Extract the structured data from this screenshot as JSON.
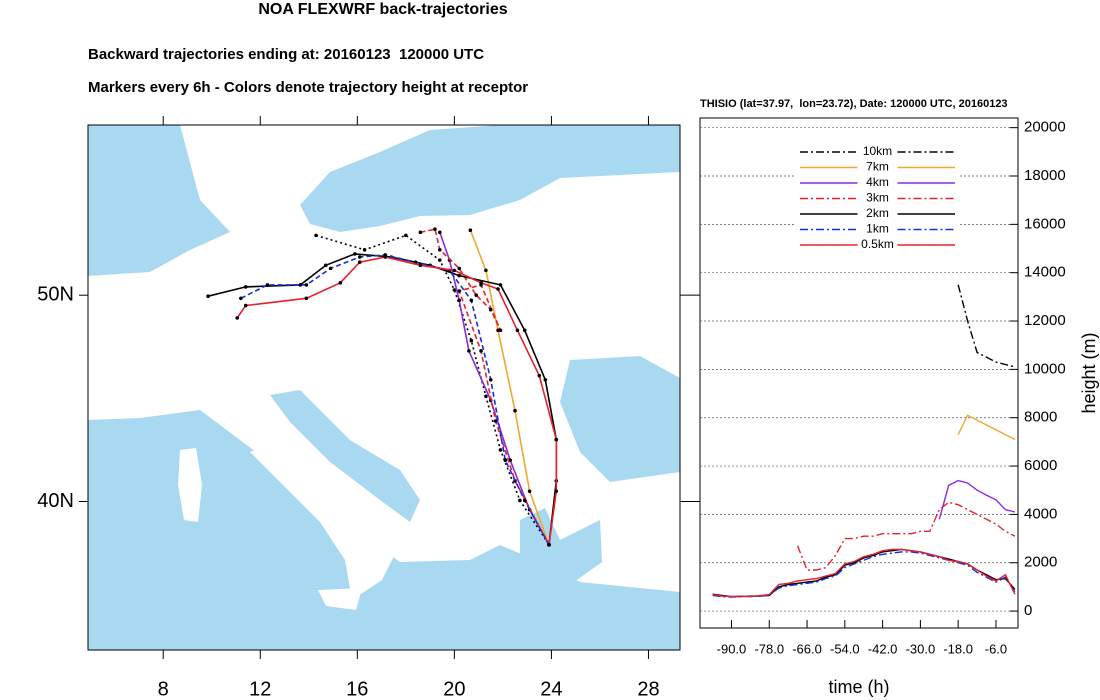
{
  "chart_data": [
    {
      "type": "trajectory-map",
      "title": "NOA FLEXWRF back-trajectories",
      "subtitle": [
        "Backward trajectories ending at: 20160123  120000 UTC",
        "Markers every 6h - Colors denote trajectory height at receptor"
      ],
      "xlim": [
        4.9,
        29.3
      ],
      "ylim": [
        32.8,
        58.25
      ],
      "xticks": [
        8,
        12,
        16,
        20,
        24,
        28
      ],
      "yticks": [
        {
          "value": 40,
          "label": "40N"
        },
        {
          "value": 50,
          "label": "50N"
        }
      ],
      "series": [
        {
          "color": "#000000",
          "style": "dotted",
          "x": [
            14.3,
            16.3,
            18.0,
            19.4,
            20.0,
            20.7,
            21.3,
            21.9,
            22.7,
            23.9
          ],
          "values": [
            52.9,
            52.2,
            52.9,
            51.7,
            50.25,
            47.8,
            45.1,
            42.5,
            40.05,
            37.9
          ]
        },
        {
          "color": "#f0a830",
          "style": "solid",
          "x": [
            20.66,
            21.3,
            21.8,
            22.5,
            23.1,
            23.9
          ],
          "values": [
            53.15,
            51.2,
            48.3,
            44.4,
            40.5,
            37.9
          ]
        },
        {
          "color": "#8a2be2",
          "style": "solid",
          "x": [
            19.4,
            19.8,
            20.2,
            20.6,
            21.5,
            22.3,
            23.1,
            23.9
          ],
          "values": [
            53.05,
            51.7,
            49.75,
            47.3,
            44.9,
            42.0,
            39.6,
            37.9
          ]
        },
        {
          "color": "#e8202a",
          "style": "dashed",
          "x": [
            18.6,
            19.2,
            19.4,
            20.2,
            20.9,
            21.5,
            21.9,
            21.1,
            20.2,
            21.1,
            21.7,
            22.5,
            23.9
          ],
          "values": [
            53.05,
            53.2,
            52.2,
            51.3,
            50.0,
            49.3,
            48.3,
            50.5,
            50.2,
            47.3,
            43.9,
            41.0,
            37.9
          ]
        },
        {
          "color": "#000000",
          "style": "solid",
          "x": [
            9.85,
            11.4,
            13.65,
            14.7,
            15.9,
            17.4,
            19.0,
            20.2,
            21.9,
            22.9,
            23.75,
            24.2,
            24.2,
            23.9
          ],
          "values": [
            49.95,
            50.4,
            50.5,
            51.45,
            52.0,
            51.85,
            51.45,
            50.95,
            50.5,
            48.3,
            45.9,
            43.0,
            41.0,
            37.9
          ]
        },
        {
          "color": "#1030e0",
          "style": "dashed",
          "x": [
            11.2,
            12.3,
            13.9,
            14.9,
            16.1,
            17.15,
            18.4,
            19.8,
            20.7,
            21.5,
            22.1,
            22.9,
            23.9
          ],
          "values": [
            49.85,
            50.5,
            50.5,
            51.3,
            51.85,
            51.95,
            51.6,
            51.2,
            49.75,
            45.9,
            42.0,
            40.05,
            37.9
          ]
        },
        {
          "color": "#e8202a",
          "style": "solid",
          "x": [
            11.05,
            11.4,
            13.9,
            15.3,
            16.1,
            17.15,
            18.6,
            20.0,
            21.1,
            21.8,
            22.6,
            23.5,
            24.2,
            24.2,
            23.9
          ],
          "values": [
            48.9,
            49.5,
            49.85,
            50.6,
            51.6,
            51.85,
            51.45,
            51.2,
            50.6,
            50.3,
            48.3,
            46.1,
            43.0,
            40.5,
            37.9
          ]
        }
      ]
    },
    {
      "type": "line",
      "title": "THISIO (lat=37.97,  lon=23.72), Date: 120000 UTC, 20160123",
      "x_label": "time (h)",
      "y_label": "height (m)",
      "x": [
        -96,
        -93,
        -90,
        -87,
        -84,
        -81,
        -78,
        -75,
        -72,
        -69,
        -66,
        -63,
        -60,
        -57,
        -54,
        -51,
        -48,
        -45,
        -42,
        -39,
        -36,
        -33,
        -30,
        -27,
        -24,
        -21,
        -18,
        -15,
        -12,
        -9,
        -6,
        -3,
        0
      ],
      "xlim": [
        -100,
        1
      ],
      "ylim": [
        -700,
        20400
      ],
      "xticks": [
        {
          "value": -90,
          "label": "-90.0"
        },
        {
          "value": -78,
          "label": "-78.0"
        },
        {
          "value": -66,
          "label": "-66.0"
        },
        {
          "value": -54,
          "label": "-54.0"
        },
        {
          "value": -42,
          "label": "-42.0"
        },
        {
          "value": -30,
          "label": "-30.0"
        },
        {
          "value": -18,
          "label": "-18.0"
        },
        {
          "value": -6,
          "label": "-6.0"
        }
      ],
      "yticks": [
        0,
        2000,
        4000,
        6000,
        8000,
        10000,
        12000,
        14000,
        16000,
        18000,
        20000
      ],
      "grid": true,
      "legend": "top",
      "series": [
        {
          "name": "10km",
          "color": "#000000",
          "style": "dash-dot",
          "values": [
            null,
            null,
            null,
            null,
            null,
            null,
            null,
            null,
            null,
            null,
            null,
            null,
            null,
            null,
            null,
            null,
            null,
            null,
            null,
            null,
            null,
            null,
            null,
            null,
            null,
            null,
            13500,
            12000,
            10700,
            10500,
            10300,
            10200,
            10100
          ]
        },
        {
          "name": "7km",
          "color": "#f0a830",
          "style": "solid",
          "values": [
            null,
            null,
            null,
            null,
            null,
            null,
            null,
            null,
            null,
            null,
            null,
            null,
            null,
            null,
            null,
            null,
            null,
            null,
            null,
            null,
            null,
            null,
            null,
            null,
            null,
            null,
            7300,
            8100,
            7900,
            7700,
            7500,
            7300,
            7100
          ]
        },
        {
          "name": "4km",
          "color": "#8a2be2",
          "style": "solid",
          "values": [
            null,
            null,
            null,
            null,
            null,
            null,
            null,
            null,
            null,
            null,
            null,
            null,
            null,
            null,
            null,
            null,
            null,
            null,
            null,
            null,
            null,
            null,
            null,
            null,
            3800,
            5200,
            5400,
            5300,
            5000,
            4800,
            4600,
            4200,
            4100
          ]
        },
        {
          "name": "3km",
          "color": "#e8202a",
          "style": "dash-dot",
          "values": [
            null,
            null,
            null,
            null,
            null,
            null,
            null,
            null,
            null,
            2700,
            1700,
            1700,
            1800,
            2300,
            3000,
            3000,
            3100,
            3100,
            3200,
            3200,
            3200,
            3200,
            3300,
            3300,
            4200,
            4500,
            4400,
            4200,
            4000,
            3800,
            3600,
            3300,
            3100
          ]
        },
        {
          "name": "2km",
          "color": "#000000",
          "style": "solid",
          "values": [
            700,
            650,
            600,
            600,
            620,
            620,
            650,
            1000,
            1100,
            1150,
            1200,
            1250,
            1400,
            1500,
            1900,
            2000,
            2200,
            2300,
            2450,
            2500,
            2550,
            2500,
            2450,
            2350,
            2250,
            2150,
            2050,
            1950,
            1700,
            1500,
            1300,
            1350,
            900
          ]
        },
        {
          "name": "1km",
          "color": "#1030e0",
          "style": "dash-dot",
          "values": [
            650,
            600,
            580,
            600,
            600,
            620,
            650,
            950,
            1050,
            1100,
            1150,
            1200,
            1350,
            1450,
            1800,
            1950,
            2100,
            2250,
            2350,
            2400,
            2450,
            2450,
            2400,
            2300,
            2200,
            2100,
            2000,
            1900,
            1600,
            1400,
            1200,
            1400,
            800
          ]
        },
        {
          "name": "0.5km",
          "color": "#e8202a",
          "style": "solid",
          "values": [
            680,
            620,
            600,
            620,
            600,
            640,
            680,
            1100,
            1150,
            1250,
            1300,
            1350,
            1450,
            1550,
            1950,
            2050,
            2250,
            2350,
            2500,
            2550,
            2550,
            2500,
            2450,
            2350,
            2250,
            2100,
            2050,
            1950,
            1700,
            1450,
            1250,
            1500,
            700
          ]
        }
      ]
    }
  ]
}
